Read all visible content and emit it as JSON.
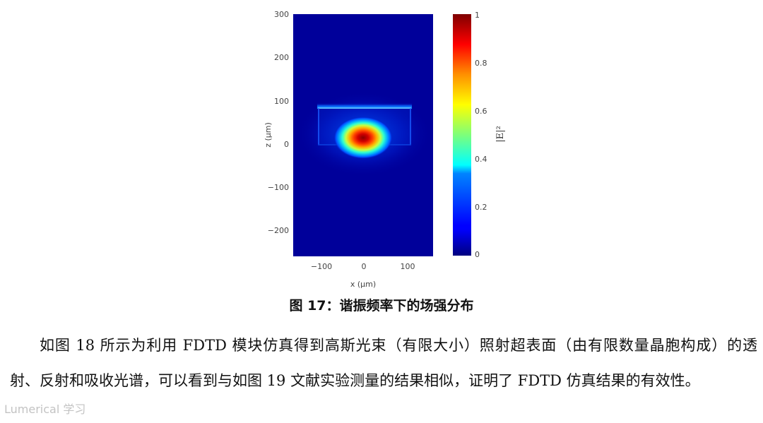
{
  "figure": {
    "caption": "图 17：谐振频率下的场强分布",
    "xlabel": "x (μm)",
    "ylabel": "z (μm)",
    "xticks": [
      "−100",
      "0",
      "100"
    ],
    "yticks": [
      "300",
      "200",
      "100",
      "0",
      "−100",
      "−200"
    ],
    "colorbar": {
      "label": "|E|²",
      "ticks": [
        "1",
        "0.8",
        "0.6",
        "0.4",
        "0.2",
        "0"
      ]
    }
  },
  "paragraph": {
    "text": "如图 18 所示为利用 FDTD 模块仿真得到高斯光束（有限大小）照射超表面（由有限数量晶胞构成）的透射、反射和吸收光谱，可以看到与如图 19 文献实验测量的结果相似，证明了 FDTD 仿真结果的有效性。"
  },
  "watermark": {
    "text": "Lumerical 学习"
  },
  "chart_data": {
    "type": "heatmap",
    "xlabel": "x (μm)",
    "ylabel": "z (μm)",
    "xlim": [
      -165,
      165
    ],
    "ylim": [
      -262,
      300
    ],
    "colorbar_range": [
      0,
      1
    ],
    "colorbar_label": "|E|²",
    "colormap": "jet",
    "peak": {
      "x": 0,
      "z": 12,
      "value": 1
    },
    "structure_outline": {
      "x_range": [
        -105,
        110
      ],
      "z_range": [
        -5,
        85
      ]
    }
  }
}
